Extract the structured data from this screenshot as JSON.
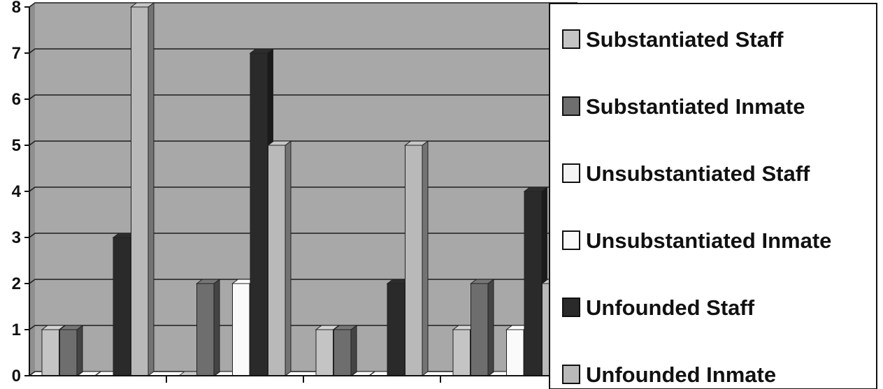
{
  "chart_data": {
    "type": "bar",
    "categories": [
      "",
      "",
      "",
      ""
    ],
    "series": [
      {
        "name": "Substantiated Staff",
        "values": [
          1,
          0,
          1,
          1
        ],
        "color": "#c4c4c4"
      },
      {
        "name": "Substantiated Inmate",
        "values": [
          1,
          2,
          1,
          2
        ],
        "color": "#6e6e6e"
      },
      {
        "name": "Unsubstantiated Staff",
        "values": [
          0,
          0,
          0,
          0
        ],
        "color": "#f4f4f4"
      },
      {
        "name": "Unsubstantiated Inmate",
        "values": [
          0,
          2,
          0,
          1
        ],
        "color": "#fafafa"
      },
      {
        "name": "Unfounded Staff",
        "values": [
          3,
          7,
          2,
          4
        ],
        "color": "#2a2a2a"
      },
      {
        "name": "Unfounded Inmate",
        "values": [
          8,
          5,
          5,
          2
        ],
        "color": "#b9b9b9"
      }
    ],
    "title": "",
    "xlabel": "",
    "ylabel": "",
    "ylim": [
      0,
      8
    ],
    "yticks": [
      "0",
      "1",
      "2",
      "3",
      "4",
      "5",
      "6",
      "7",
      "8"
    ],
    "grid": true,
    "legend_position": "right",
    "plot_background": "#a8a8a8",
    "gridline_color": "#1e1e1e"
  }
}
